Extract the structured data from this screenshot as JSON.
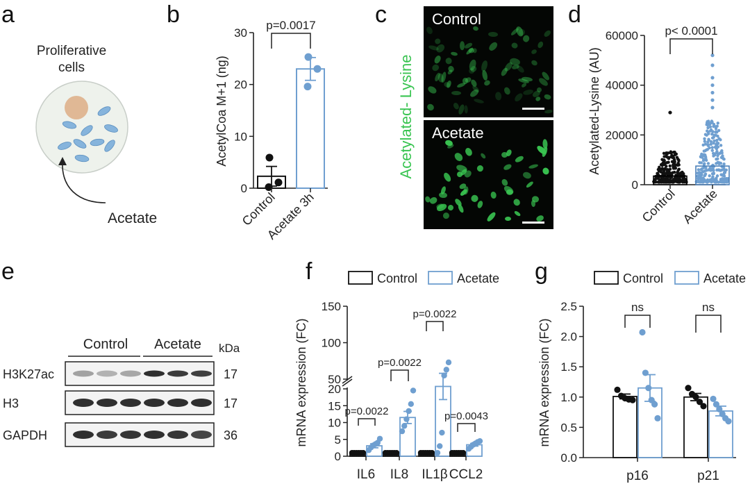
{
  "panel_letters": [
    "a",
    "b",
    "c",
    "d",
    "e",
    "f",
    "g"
  ],
  "colors": {
    "control": "#111111",
    "acetate": "#6f9fd0",
    "fluor": "#39c451",
    "nucleus": "#e0b895",
    "cell": "#eef2ec"
  },
  "panel_a": {
    "title": "Proliferative\ncells",
    "arrow_label": "Acetate"
  },
  "panel_b": {
    "p_value": "p=0.0017"
  },
  "panel_c": {
    "side_label": "Acetylated- Lysine",
    "top_label": "Control",
    "bottom_label": "Acetate"
  },
  "panel_d": {
    "p_value": "p< 0.0001"
  },
  "panel_e": {
    "groups": [
      "Control",
      "Acetate"
    ],
    "kda_header": "kDa",
    "rows": [
      {
        "name": "H3K27ac",
        "kda": "17",
        "intensities": [
          0.35,
          0.28,
          0.33,
          0.85,
          0.8,
          0.78
        ]
      },
      {
        "name": "H3",
        "kda": "17",
        "intensities": [
          0.85,
          0.85,
          0.85,
          0.85,
          0.85,
          0.85
        ]
      },
      {
        "name": "GAPDH",
        "kda": "36",
        "intensities": [
          0.85,
          0.8,
          0.82,
          0.85,
          0.82,
          0.75
        ]
      }
    ]
  },
  "chart_data": [
    {
      "panel": "b",
      "type": "bar",
      "ylabel": "AcetylCoa M+1 (ng)",
      "ylim": [
        0,
        30
      ],
      "yticks": [
        0,
        10,
        20,
        30
      ],
      "categories": [
        "Control",
        "Acetate 3h"
      ],
      "means": [
        2.3,
        23
      ],
      "sem": [
        1.9,
        2.2
      ],
      "points": [
        [
          5.9,
          1.1,
          0.2
        ],
        [
          25.3,
          23,
          19.6
        ]
      ],
      "annotations": [
        "p=0.0017"
      ]
    },
    {
      "panel": "d",
      "type": "bar",
      "ylabel": "Acetylated-Lysine (AU)",
      "ylim": [
        0,
        60000
      ],
      "yticks": [
        0,
        20000,
        40000,
        60000
      ],
      "categories": [
        "Control",
        "Acetate"
      ],
      "means": [
        3500,
        7500
      ],
      "point_range": [
        [
          1000,
          14000
        ],
        [
          1000,
          26000
        ]
      ],
      "outliers": [
        [
          29000
        ],
        [
          31000,
          34000,
          37000,
          40000,
          43000,
          48000,
          52000
        ]
      ],
      "annotations": [
        "p< 0.0001"
      ]
    },
    {
      "panel": "f",
      "type": "bar",
      "ylabel": "mRNA expression (FC)",
      "y_axis_break": true,
      "yticks_lower": [
        0,
        5,
        10,
        15,
        20
      ],
      "yticks_upper": [
        50,
        100,
        150
      ],
      "categories": [
        "IL6",
        "IL8",
        "IL1β",
        "CCL2"
      ],
      "series": [
        {
          "name": "Control",
          "means": [
            1,
            1,
            1,
            1
          ],
          "points": [
            [
              1,
              1,
              1,
              1,
              1,
              1
            ],
            [
              1,
              1,
              1,
              1,
              1,
              1
            ],
            [
              1,
              1,
              1,
              1,
              1,
              1
            ],
            [
              1,
              1,
              1,
              1,
              1,
              1
            ]
          ]
        },
        {
          "name": "Acetate",
          "means": [
            3.1,
            11.5,
            40,
            3.4
          ],
          "sem": [
            0.6,
            1.8,
            18,
            0.4
          ],
          "points": [
            [
              1.8,
              2.6,
              3.2,
              3.6,
              4.0,
              5.2
            ],
            [
              7.4,
              9.0,
              11.0,
              13.4,
              15.5,
              19.5
            ],
            [
              1,
              3,
              7,
              55,
              63,
              73
            ],
            [
              2.2,
              2.8,
              3.4,
              3.8,
              4.2,
              4.5
            ]
          ]
        }
      ],
      "annotations": [
        "p=0.0022",
        "p=0.0022",
        "p=0.0022",
        "p=0.0043"
      ],
      "legend": [
        "Control",
        "Acetate"
      ]
    },
    {
      "panel": "g",
      "type": "bar",
      "ylabel": "mRNA expression (FC)",
      "ylim": [
        0,
        2.5
      ],
      "yticks": [
        0.0,
        0.5,
        1.0,
        1.5,
        2.0,
        2.5
      ],
      "categories": [
        "p16",
        "p21"
      ],
      "series": [
        {
          "name": "Control",
          "means": [
            1.01,
            1.0
          ],
          "sem": [
            0.04,
            0.06
          ],
          "points": [
            [
              1.12,
              1.02,
              0.98,
              0.96,
              0.95
            ],
            [
              1.15,
              1.05,
              1.0,
              0.92,
              0.85
            ]
          ]
        },
        {
          "name": "Acetate",
          "means": [
            1.15,
            0.77
          ],
          "sem": [
            0.22,
            0.08
          ],
          "points": [
            [
              2.07,
              1.4,
              1.15,
              0.95,
              0.88,
              0.65
            ],
            [
              0.97,
              0.88,
              0.8,
              0.72,
              0.65,
              0.6
            ]
          ]
        }
      ],
      "annotations": [
        "ns",
        "ns"
      ],
      "legend": [
        "Control",
        "Acetate"
      ]
    }
  ]
}
